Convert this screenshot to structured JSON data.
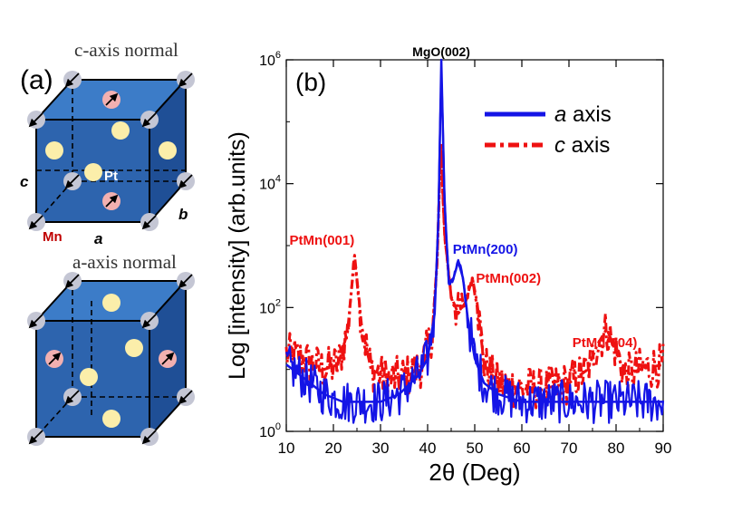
{
  "colors": {
    "series_a": "#1414e6",
    "series_c": "#ee1111",
    "cube_front": "#2d64ae",
    "cube_side": "#1f4f96",
    "cube_top": "#3c7cc8",
    "pt_atom": "#fbeeaa",
    "mn_atom": "#f2b0b0",
    "corner_atom": "#c4c6d4",
    "mn_label": "#c00000"
  },
  "panel_a": {
    "label": "(a)",
    "top_cube": {
      "title": "c-axis normal",
      "label_c": "c",
      "label_a": "a",
      "label_b": "b",
      "label_pt": "Pt",
      "label_mn": "Mn"
    },
    "bottom_cube": {
      "title": "a-axis normal"
    }
  },
  "chart_data": {
    "type": "line",
    "panel_label": "(b)",
    "title": "",
    "xlabel": "2θ (Deg)",
    "ylabel": "Log [intensity] (arb.units)",
    "xscale": "linear",
    "yscale": "log",
    "xlim": [
      10,
      90
    ],
    "ylim": [
      1,
      1000000
    ],
    "xticks": [
      "10",
      "20",
      "30",
      "40",
      "50",
      "60",
      "70",
      "80",
      "90"
    ],
    "yticks": [
      {
        "base": "10",
        "exp": "0"
      },
      {
        "base": "10",
        "exp": "2"
      },
      {
        "base": "10",
        "exp": "4"
      },
      {
        "base": "10",
        "exp": "6"
      }
    ],
    "legend_position": "top-right",
    "series": [
      {
        "name": "a axis",
        "name_italic": "a",
        "name_rest": " axis",
        "style": "solid",
        "x": [
          10,
          14,
          18,
          22,
          26,
          30,
          34,
          38,
          40,
          41.5,
          42.3,
          42.9,
          43.6,
          44.5,
          45.5,
          46.5,
          47.5,
          48.5,
          50,
          52,
          55,
          60,
          65,
          70,
          75,
          80,
          85,
          90
        ],
        "y": [
          12,
          7,
          4,
          3,
          3,
          3,
          4,
          8,
          15,
          80,
          3000,
          1000000,
          5000,
          250,
          300,
          550,
          300,
          70,
          15,
          6,
          4,
          3,
          3,
          3,
          3,
          3,
          3,
          3
        ]
      },
      {
        "name": "c axis",
        "name_italic": "c",
        "name_rest": " axis",
        "style": "dash-dot",
        "x": [
          10,
          14,
          18,
          21,
          23,
          24.5,
          26,
          28,
          32,
          36,
          39,
          41,
          42,
          42.8,
          43.6,
          45,
          46.5,
          48,
          49.5,
          50.5,
          52,
          55,
          60,
          65,
          70,
          74,
          76,
          78,
          80,
          82,
          85,
          90
        ],
        "y": [
          18,
          14,
          10,
          12,
          40,
          700,
          50,
          10,
          7,
          8,
          12,
          40,
          500,
          45000,
          1500,
          150,
          80,
          120,
          300,
          120,
          12,
          6,
          5,
          5,
          6,
          10,
          25,
          45,
          20,
          8,
          10,
          12
        ]
      }
    ],
    "annotations": [
      {
        "text": "MgO(002)",
        "x": 42.9,
        "y": 1000000,
        "color": "#000000"
      },
      {
        "text": "PtMn(001)",
        "x": 24.5,
        "y": 700,
        "color": "#ee1111"
      },
      {
        "text": "PtMn(200)",
        "x": 46.5,
        "y": 550,
        "color": "#1414e6"
      },
      {
        "text": "PtMn(002)",
        "x": 49.5,
        "y": 300,
        "color": "#ee1111"
      },
      {
        "text": "PtMn(004)",
        "x": 78,
        "y": 45,
        "color": "#ee1111"
      }
    ]
  }
}
